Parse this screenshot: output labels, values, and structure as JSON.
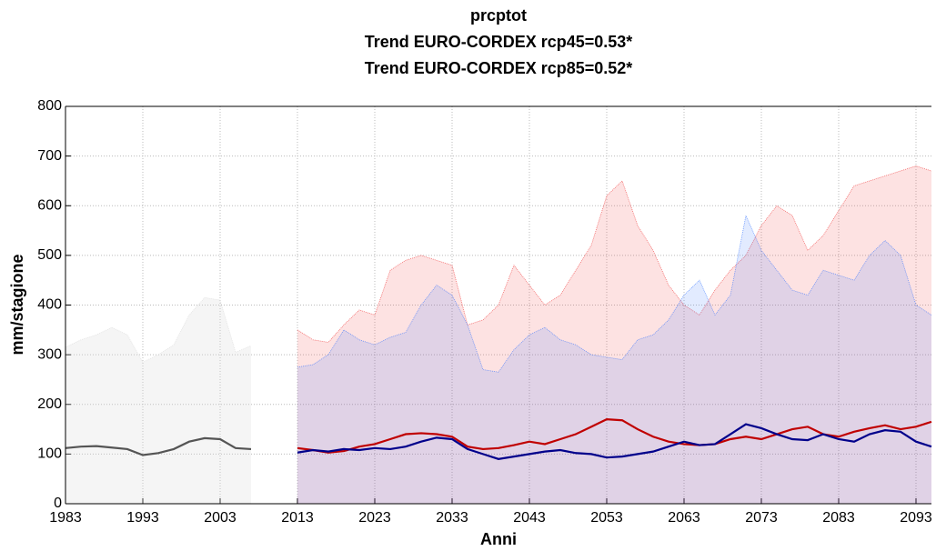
{
  "chart_data": {
    "type": "line",
    "title": "prcptot",
    "subtitles": [
      "Trend EURO-CORDEX rcp45=0.53*",
      "Trend EURO-CORDEX rcp85=0.52*"
    ],
    "x_label": "Anni",
    "y_label": "mm/stagione",
    "xlim": [
      1983,
      2095
    ],
    "ylim": [
      0,
      800
    ],
    "xticks": [
      1983,
      1993,
      2003,
      2013,
      2023,
      2033,
      2043,
      2053,
      2063,
      2073,
      2083,
      2093
    ],
    "yticks": [
      0,
      100,
      200,
      300,
      400,
      500,
      600,
      700,
      800
    ],
    "grid": true,
    "series": [
      {
        "color": "#555555",
        "band_color": "#d8d8d8",
        "x": [
          1983,
          1985,
          1987,
          1989,
          1991,
          1993,
          1995,
          1997,
          1999,
          2001,
          2003,
          2005,
          2007
        ],
        "values": [
          112,
          115,
          116,
          113,
          110,
          98,
          102,
          110,
          125,
          132,
          130,
          112,
          110
        ],
        "upper": [
          315,
          330,
          340,
          355,
          340,
          285,
          300,
          320,
          380,
          415,
          410,
          305,
          318
        ]
      },
      {
        "color": "#c00000",
        "band_color": "#f03030",
        "x": [
          2013,
          2015,
          2017,
          2019,
          2021,
          2023,
          2025,
          2027,
          2029,
          2031,
          2033,
          2035,
          2037,
          2039,
          2041,
          2043,
          2045,
          2047,
          2049,
          2051,
          2053,
          2055,
          2057,
          2059,
          2061,
          2063,
          2065,
          2067,
          2069,
          2071,
          2073,
          2075,
          2077,
          2079,
          2081,
          2083,
          2085,
          2087,
          2089,
          2091,
          2093,
          2095
        ],
        "values": [
          112,
          108,
          103,
          106,
          115,
          120,
          130,
          140,
          142,
          140,
          135,
          115,
          110,
          112,
          118,
          125,
          120,
          130,
          140,
          155,
          170,
          168,
          150,
          135,
          125,
          120,
          118,
          120,
          130,
          135,
          130,
          140,
          150,
          155,
          140,
          135,
          145,
          152,
          158,
          150,
          155,
          165
        ],
        "upper": [
          350,
          330,
          325,
          360,
          390,
          380,
          470,
          490,
          500,
          490,
          480,
          360,
          370,
          400,
          480,
          440,
          400,
          420,
          470,
          520,
          620,
          650,
          560,
          510,
          440,
          400,
          380,
          430,
          470,
          500,
          560,
          600,
          580,
          510,
          540,
          590,
          640,
          650,
          660,
          670,
          680,
          670
        ]
      },
      {
        "color": "#00008b",
        "band_color": "#3070ff",
        "x": [
          2013,
          2015,
          2017,
          2019,
          2021,
          2023,
          2025,
          2027,
          2029,
          2031,
          2033,
          2035,
          2037,
          2039,
          2041,
          2043,
          2045,
          2047,
          2049,
          2051,
          2053,
          2055,
          2057,
          2059,
          2061,
          2063,
          2065,
          2067,
          2069,
          2071,
          2073,
          2075,
          2077,
          2079,
          2081,
          2083,
          2085,
          2087,
          2089,
          2091,
          2093,
          2095
        ],
        "values": [
          103,
          108,
          105,
          110,
          108,
          112,
          110,
          115,
          125,
          133,
          130,
          110,
          100,
          90,
          95,
          100,
          105,
          108,
          102,
          100,
          93,
          95,
          100,
          105,
          115,
          125,
          118,
          120,
          140,
          160,
          152,
          140,
          130,
          128,
          140,
          130,
          125,
          140,
          148,
          145,
          125,
          115
        ],
        "upper": [
          275,
          280,
          300,
          350,
          330,
          320,
          335,
          345,
          400,
          440,
          420,
          360,
          270,
          265,
          310,
          340,
          355,
          330,
          320,
          300,
          295,
          290,
          330,
          340,
          370,
          420,
          450,
          380,
          420,
          580,
          510,
          470,
          430,
          420,
          470,
          460,
          450,
          500,
          530,
          500,
          400,
          380
        ]
      }
    ]
  }
}
